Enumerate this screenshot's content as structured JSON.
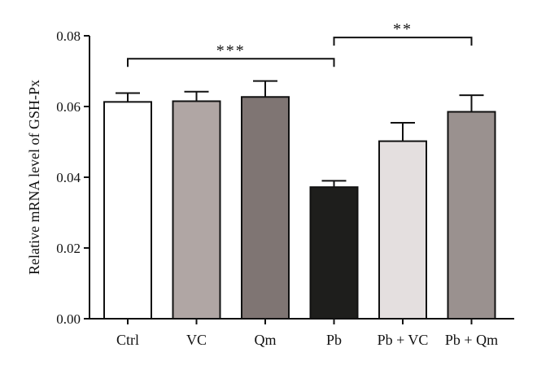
{
  "chart_data": {
    "type": "bar",
    "title": "",
    "xlabel": "",
    "ylabel": "Relative mRNA level of GSH-Px",
    "ylim": [
      0,
      0.08
    ],
    "yticks": [
      "0.00",
      "0.02",
      "0.04",
      "0.06",
      "0.08"
    ],
    "categories": [
      "Ctrl",
      "VC",
      "Qm",
      "Pb",
      "Pb + VC",
      "Pb + Qm"
    ],
    "values": [
      0.0613,
      0.0615,
      0.0627,
      0.0372,
      0.0502,
      0.0585
    ],
    "errors": [
      0.0025,
      0.0027,
      0.0045,
      0.0018,
      0.0052,
      0.0047
    ],
    "bar_colors": [
      "#ffffff",
      "#b0a6a4",
      "#7f7573",
      "#1e1e1c",
      "#e4dfdf",
      "#9a918f"
    ],
    "grid": false,
    "legend": "none",
    "significance": [
      {
        "from": "Ctrl",
        "to": "Pb",
        "label": "***",
        "level": 0.0735
      },
      {
        "from": "Pb",
        "to": "Pb + Qm",
        "label": "**",
        "level": 0.0795
      }
    ]
  }
}
